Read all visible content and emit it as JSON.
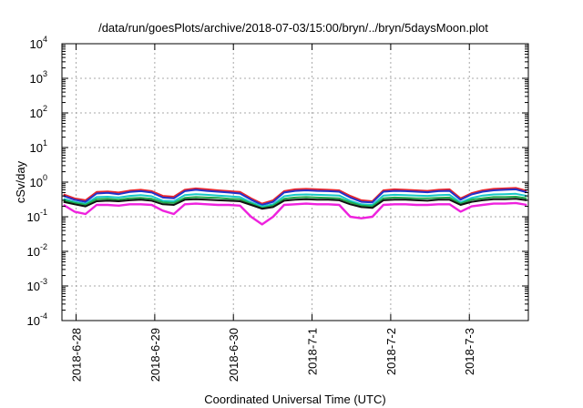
{
  "chart_data": {
    "type": "line",
    "title": "/data/run/goesPlots/archive/2018-07-03/15:00/bryn/../bryn/5daysMoon.plot",
    "xlabel": "Coordinated Universal Time (UTC)",
    "ylabel": "cSv/day",
    "yscale": "log",
    "ylim": [
      0.0001,
      10000
    ],
    "xlim": [
      -0.18,
      5.75
    ],
    "x_unit_note": "days after 2018-06-28 00:00 UTC",
    "y_ticks": [
      {
        "base": "10",
        "exp": "-4",
        "value": 0.0001
      },
      {
        "base": "10",
        "exp": "-3",
        "value": 0.001
      },
      {
        "base": "10",
        "exp": "-2",
        "value": 0.01
      },
      {
        "base": "10",
        "exp": "-1",
        "value": 0.1
      },
      {
        "base": "10",
        "exp": "0",
        "value": 1
      },
      {
        "base": "10",
        "exp": "1",
        "value": 10
      },
      {
        "base": "10",
        "exp": "2",
        "value": 100
      },
      {
        "base": "10",
        "exp": "3",
        "value": 1000
      },
      {
        "base": "10",
        "exp": "4",
        "value": 10000
      }
    ],
    "x_ticks": [
      {
        "label": "2018-6-28",
        "value": 0
      },
      {
        "label": "2018-6-29",
        "value": 1
      },
      {
        "label": "2018-6-30",
        "value": 2
      },
      {
        "label": "2018-7-1",
        "value": 3
      },
      {
        "label": "2018-7-2",
        "value": 4
      },
      {
        "label": "2018-7-3",
        "value": 5
      }
    ],
    "grid": true,
    "series": [
      {
        "color": "#e8242c",
        "values": [
          0.44,
          0.34,
          0.3,
          0.52,
          0.54,
          0.5,
          0.57,
          0.6,
          0.55,
          0.4,
          0.38,
          0.6,
          0.66,
          0.62,
          0.58,
          0.55,
          0.52,
          0.34,
          0.24,
          0.3,
          0.55,
          0.62,
          0.64,
          0.62,
          0.6,
          0.58,
          0.4,
          0.3,
          0.28,
          0.58,
          0.62,
          0.6,
          0.58,
          0.56,
          0.6,
          0.62,
          0.34,
          0.48,
          0.58,
          0.64,
          0.66,
          0.68,
          0.56
        ]
      },
      {
        "color": "#2233cc",
        "values": [
          0.4,
          0.31,
          0.27,
          0.47,
          0.49,
          0.45,
          0.52,
          0.55,
          0.5,
          0.36,
          0.34,
          0.55,
          0.6,
          0.56,
          0.53,
          0.5,
          0.47,
          0.31,
          0.22,
          0.27,
          0.5,
          0.56,
          0.58,
          0.56,
          0.55,
          0.53,
          0.36,
          0.27,
          0.26,
          0.53,
          0.56,
          0.55,
          0.53,
          0.51,
          0.55,
          0.56,
          0.31,
          0.44,
          0.53,
          0.58,
          0.6,
          0.62,
          0.51
        ]
      },
      {
        "color": "#18c8c8",
        "values": [
          0.33,
          0.27,
          0.24,
          0.37,
          0.38,
          0.36,
          0.4,
          0.42,
          0.39,
          0.29,
          0.28,
          0.42,
          0.45,
          0.43,
          0.41,
          0.39,
          0.37,
          0.26,
          0.2,
          0.23,
          0.39,
          0.43,
          0.44,
          0.43,
          0.42,
          0.41,
          0.29,
          0.23,
          0.22,
          0.41,
          0.43,
          0.42,
          0.41,
          0.4,
          0.42,
          0.43,
          0.26,
          0.35,
          0.41,
          0.44,
          0.45,
          0.46,
          0.4
        ]
      },
      {
        "color": "#1fa84a",
        "values": [
          0.3,
          0.25,
          0.22,
          0.32,
          0.33,
          0.31,
          0.34,
          0.35,
          0.33,
          0.26,
          0.25,
          0.35,
          0.37,
          0.36,
          0.35,
          0.33,
          0.32,
          0.24,
          0.18,
          0.21,
          0.33,
          0.36,
          0.37,
          0.36,
          0.35,
          0.34,
          0.26,
          0.21,
          0.2,
          0.34,
          0.36,
          0.35,
          0.34,
          0.34,
          0.35,
          0.36,
          0.24,
          0.31,
          0.34,
          0.37,
          0.37,
          0.38,
          0.34
        ]
      },
      {
        "color": "#111111",
        "values": [
          0.27,
          0.23,
          0.2,
          0.28,
          0.29,
          0.28,
          0.3,
          0.31,
          0.29,
          0.23,
          0.22,
          0.31,
          0.32,
          0.31,
          0.3,
          0.29,
          0.28,
          0.22,
          0.17,
          0.19,
          0.29,
          0.31,
          0.32,
          0.31,
          0.31,
          0.3,
          0.23,
          0.19,
          0.18,
          0.3,
          0.31,
          0.31,
          0.3,
          0.29,
          0.31,
          0.31,
          0.22,
          0.27,
          0.3,
          0.32,
          0.32,
          0.33,
          0.3
        ]
      },
      {
        "color": "#ee22dd",
        "values": [
          0.22,
          0.14,
          0.12,
          0.22,
          0.22,
          0.21,
          0.23,
          0.23,
          0.22,
          0.15,
          0.12,
          0.23,
          0.24,
          0.23,
          0.22,
          0.22,
          0.21,
          0.1,
          0.06,
          0.1,
          0.22,
          0.23,
          0.24,
          0.23,
          0.23,
          0.22,
          0.1,
          0.09,
          0.1,
          0.22,
          0.23,
          0.23,
          0.22,
          0.22,
          0.23,
          0.23,
          0.14,
          0.2,
          0.22,
          0.24,
          0.24,
          0.25,
          0.22
        ]
      }
    ]
  }
}
